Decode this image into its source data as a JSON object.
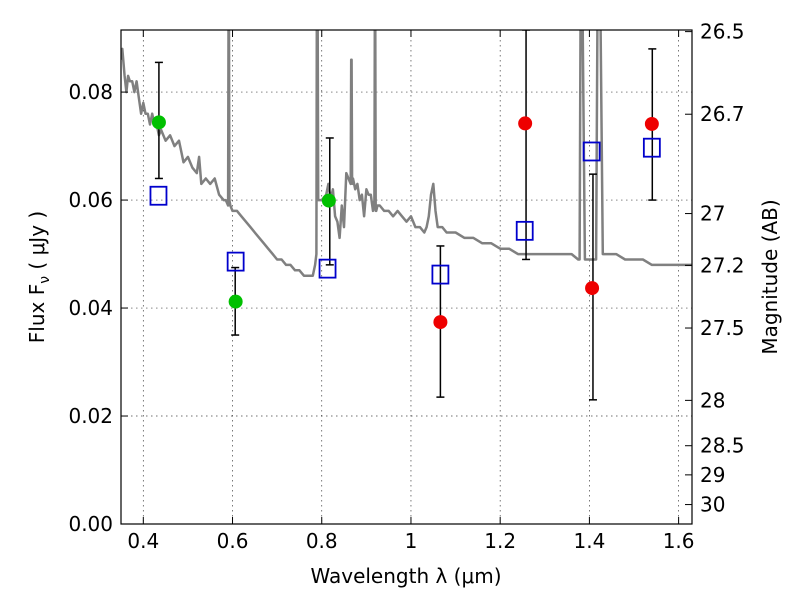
{
  "chart_data": {
    "type": "scatter",
    "xlabel": "Wavelength  λ (μm)",
    "ylabel": "Flux  F",
    "ylabel_sub": "ν",
    "ylabel_unit": "  ( μJy )",
    "ylabel_right": "Magnitude (AB)",
    "xlim": [
      0.35,
      1.63
    ],
    "ylim": [
      0.0,
      0.0915
    ],
    "grid": true,
    "x_ticks": [
      0.4,
      0.6,
      0.8,
      1.0,
      1.2,
      1.4,
      1.6
    ],
    "x_tick_labels": [
      "0.4",
      "0.6",
      "0.8",
      "1",
      "1.2",
      "1.4",
      "1.6"
    ],
    "y_ticks": [
      0.0,
      0.02,
      0.04,
      0.06,
      0.08
    ],
    "y_tick_labels": [
      "0.00",
      "0.02",
      "0.04",
      "0.06",
      "0.08"
    ],
    "right_ticks": [
      {
        "label": "26.5",
        "flux": 0.0912
      },
      {
        "label": "26.7",
        "flux": 0.0759
      },
      {
        "label": "27",
        "flux": 0.0575
      },
      {
        "label": "27.2",
        "flux": 0.0479
      },
      {
        "label": "27.5",
        "flux": 0.0363
      },
      {
        "label": "28",
        "flux": 0.0229
      },
      {
        "label": "28.5",
        "flux": 0.0145
      },
      {
        "label": "29",
        "flux": 0.0091
      },
      {
        "label": "30",
        "flux": 0.0036
      }
    ],
    "series": [
      {
        "kind": "line",
        "color": "#808080",
        "x": [
          0.35,
          0.353,
          0.358,
          0.362,
          0.366,
          0.37,
          0.375,
          0.38,
          0.385,
          0.39,
          0.395,
          0.4,
          0.405,
          0.41,
          0.415,
          0.42,
          0.425,
          0.43,
          0.435,
          0.44,
          0.45,
          0.46,
          0.47,
          0.48,
          0.49,
          0.5,
          0.51,
          0.52,
          0.525,
          0.53,
          0.54,
          0.55,
          0.56,
          0.57,
          0.58,
          0.585,
          0.59,
          0.591,
          0.592,
          0.593,
          0.595,
          0.6,
          0.61,
          0.62,
          0.63,
          0.64,
          0.65,
          0.66,
          0.67,
          0.68,
          0.69,
          0.7,
          0.71,
          0.72,
          0.73,
          0.74,
          0.75,
          0.76,
          0.77,
          0.78,
          0.785,
          0.788,
          0.789,
          0.79,
          0.791,
          0.792,
          0.795,
          0.8,
          0.81,
          0.815,
          0.82,
          0.825,
          0.83,
          0.835,
          0.84,
          0.845,
          0.85,
          0.855,
          0.86,
          0.865,
          0.866,
          0.867,
          0.868,
          0.87,
          0.875,
          0.88,
          0.885,
          0.89,
          0.895,
          0.9,
          0.905,
          0.91,
          0.915,
          0.918,
          0.919,
          0.92,
          0.921,
          0.922,
          0.925,
          0.93,
          0.94,
          0.95,
          0.96,
          0.97,
          0.98,
          0.99,
          1.0,
          1.01,
          1.02,
          1.03,
          1.035,
          1.04,
          1.045,
          1.05,
          1.055,
          1.06,
          1.065,
          1.07,
          1.08,
          1.09,
          1.1,
          1.12,
          1.14,
          1.16,
          1.18,
          1.2,
          1.22,
          1.24,
          1.26,
          1.28,
          1.3,
          1.32,
          1.34,
          1.36,
          1.375,
          1.378,
          1.38,
          1.382,
          1.385,
          1.39,
          1.395,
          1.4,
          1.405,
          1.41,
          1.415,
          1.418,
          1.42,
          1.422,
          1.425,
          1.43,
          1.44,
          1.45,
          1.46,
          1.48,
          1.5,
          1.52,
          1.54,
          1.56,
          1.58,
          1.6,
          1.62,
          1.63
        ],
        "y": [
          0.086,
          0.088,
          0.083,
          0.08,
          0.083,
          0.082,
          0.082,
          0.08,
          0.082,
          0.079,
          0.076,
          0.078,
          0.076,
          0.076,
          0.074,
          0.076,
          0.074,
          0.074,
          0.072,
          0.073,
          0.071,
          0.072,
          0.07,
          0.071,
          0.067,
          0.068,
          0.066,
          0.065,
          0.068,
          0.063,
          0.064,
          0.063,
          0.064,
          0.061,
          0.06,
          0.06,
          0.059,
          0.092,
          0.092,
          0.06,
          0.059,
          0.058,
          0.058,
          0.057,
          0.056,
          0.055,
          0.054,
          0.053,
          0.052,
          0.051,
          0.05,
          0.049,
          0.049,
          0.048,
          0.048,
          0.047,
          0.047,
          0.046,
          0.046,
          0.046,
          0.048,
          0.05,
          0.092,
          0.092,
          0.092,
          0.06,
          0.06,
          0.06,
          0.061,
          0.063,
          0.06,
          0.062,
          0.057,
          0.056,
          0.053,
          0.059,
          0.055,
          0.065,
          0.064,
          0.063,
          0.086,
          0.086,
          0.063,
          0.064,
          0.062,
          0.063,
          0.06,
          0.061,
          0.057,
          0.062,
          0.061,
          0.061,
          0.058,
          0.06,
          0.092,
          0.092,
          0.058,
          0.058,
          0.059,
          0.059,
          0.058,
          0.058,
          0.057,
          0.058,
          0.057,
          0.056,
          0.057,
          0.055,
          0.055,
          0.054,
          0.055,
          0.057,
          0.061,
          0.063,
          0.058,
          0.055,
          0.055,
          0.055,
          0.054,
          0.054,
          0.054,
          0.053,
          0.053,
          0.052,
          0.052,
          0.051,
          0.051,
          0.05,
          0.05,
          0.05,
          0.05,
          0.05,
          0.05,
          0.05,
          0.049,
          0.049,
          0.092,
          0.092,
          0.092,
          0.049,
          0.049,
          0.049,
          0.049,
          0.049,
          0.049,
          0.092,
          0.092,
          0.092,
          0.092,
          0.05,
          0.05,
          0.05,
          0.05,
          0.049,
          0.049,
          0.049,
          0.048,
          0.048,
          0.048,
          0.048,
          0.048,
          0.048
        ]
      },
      {
        "kind": "errorbar",
        "color": "#000000",
        "x": [
          0.435,
          0.606,
          0.818,
          1.066,
          1.258,
          1.408,
          1.541
        ],
        "y_low": [
          0.064,
          0.035,
          0.048,
          0.0235,
          0.049,
          0.023,
          0.06
        ],
        "y_high": [
          0.0855,
          0.0475,
          0.0715,
          0.0515,
          0.0915,
          0.0648,
          0.088
        ]
      },
      {
        "kind": "square",
        "color": "#0000cc",
        "x": [
          0.434,
          0.607,
          0.813,
          1.066,
          1.255,
          1.405,
          1.54
        ],
        "y": [
          0.0608,
          0.0486,
          0.0473,
          0.0462,
          0.0543,
          0.069,
          0.0697
        ]
      },
      {
        "kind": "circle",
        "color": "#00c000",
        "x": [
          0.435,
          0.607,
          0.816
        ],
        "y": [
          0.0744,
          0.0412,
          0.0599
        ]
      },
      {
        "kind": "circle",
        "color": "#ee0000",
        "x": [
          1.066,
          1.256,
          1.406,
          1.54
        ],
        "y": [
          0.0374,
          0.0742,
          0.0437,
          0.0741
        ]
      }
    ]
  }
}
